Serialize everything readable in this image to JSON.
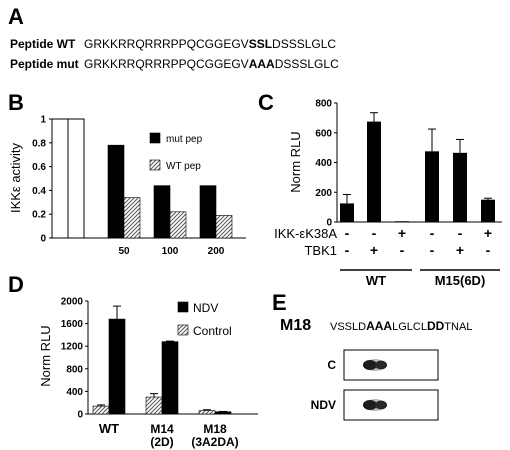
{
  "panels": {
    "A": "A",
    "B": "B",
    "C": "C",
    "D": "D",
    "E": "E"
  },
  "peptides": [
    {
      "name": "Peptide WT",
      "seq_pre": "GRKKRRQRRRPPQCGGEGV",
      "seq_mid": "SSL",
      "seq_post": "DSSSLGLC"
    },
    {
      "name": "Peptide mut",
      "seq_pre": "GRKKRRQRRRPPQCGGEGV",
      "seq_mid": "AAA",
      "seq_post": "DSSSLGLC"
    }
  ],
  "chart_data": [
    {
      "id": "B",
      "type": "bar",
      "ylabel": "IKKε activity",
      "ylim": [
        0,
        1
      ],
      "yticks": [
        "0",
        "0.2",
        "0.4",
        "0.6",
        "0.8",
        "1"
      ],
      "control_values": [
        1,
        1
      ],
      "categories": [
        "50",
        "100",
        "200"
      ],
      "series": [
        {
          "name": "mut pep",
          "values": [
            0.78,
            0.44,
            0.44
          ],
          "color": "#000000"
        },
        {
          "name": "WT pep",
          "values": [
            0.34,
            0.22,
            0.19
          ],
          "pattern": "hatch"
        }
      ],
      "legend": "top-right"
    },
    {
      "id": "C",
      "type": "bar",
      "ylabel": "Norm RLU",
      "ylim": [
        0,
        800
      ],
      "yticks": [
        "0",
        "200",
        "400",
        "600",
        "800"
      ],
      "values": [
        125,
        675,
        5,
        475,
        465,
        150
      ],
      "errors": [
        60,
        60,
        0,
        150,
        90,
        10
      ],
      "row_labels": [
        {
          "label": "IKK-εK38A",
          "signs": [
            "-",
            "-",
            "+",
            "-",
            "-",
            "+"
          ]
        },
        {
          "label": "TBK1",
          "signs": [
            "-",
            "+",
            "-",
            "-",
            "+",
            "-"
          ]
        }
      ],
      "groups": [
        "WT",
        "M15(6D)"
      ]
    },
    {
      "id": "D",
      "type": "bar",
      "ylabel": "Norm RLU",
      "ylim": [
        0,
        2000
      ],
      "yticks": [
        "0",
        "400",
        "800",
        "1200",
        "1600",
        "2000"
      ],
      "categories": [
        "WT",
        "M14 (2D)",
        "M18 (3A2DA)"
      ],
      "category_lines": [
        [
          "WT"
        ],
        [
          "M14",
          "(2D)"
        ],
        [
          "M18",
          "(3A2DA)"
        ]
      ],
      "series": [
        {
          "name": "Control",
          "values": [
            140,
            300,
            60
          ],
          "errors": [
            20,
            60,
            15
          ],
          "pattern": "hatch"
        },
        {
          "name": "NDV",
          "values": [
            1680,
            1280,
            40
          ],
          "errors": [
            230,
            10,
            5
          ],
          "color": "#000000"
        }
      ],
      "legend_order": [
        "NDV",
        "Control"
      ],
      "legend": "top-right"
    }
  ],
  "panelE": {
    "label": "M18",
    "seq": [
      {
        "t": "VSSLD",
        "b": false
      },
      {
        "t": "AAA",
        "b": true
      },
      {
        "t": "LGLCL",
        "b": false
      },
      {
        "t": "DD",
        "b": true
      },
      {
        "t": "TNAL",
        "b": false
      }
    ],
    "blots": [
      {
        "label": "C"
      },
      {
        "label": "NDV"
      }
    ]
  }
}
